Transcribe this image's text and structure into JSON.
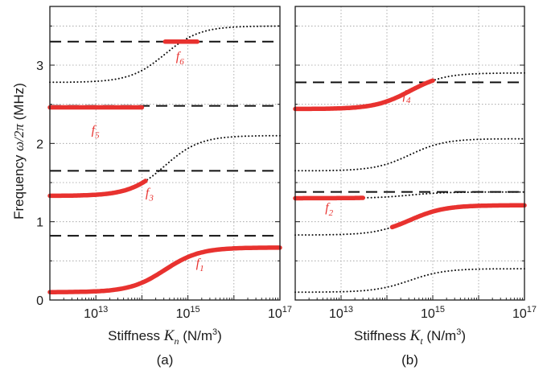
{
  "ylabel": {
    "prefix": "Frequency ",
    "symbol": "ω/2π",
    "unit": " (MHz)"
  },
  "colors": {
    "highlight": "#e8322f",
    "axis": "#1a1a1a",
    "grid": "#9a9a9a"
  },
  "chart_data": [
    {
      "type": "line",
      "panel_label": "(a)",
      "xlabel": {
        "prefix": "Stiffness ",
        "symbol": "K",
        "sub": "n",
        "unit": " (N/m",
        "sup": "3",
        "close": ")"
      },
      "x_scale": "log",
      "xlim": [
        1000000000000.0,
        1e+17
      ],
      "ylim": [
        0,
        3.75
      ],
      "grid": true,
      "yticks": [
        0,
        1,
        2,
        3
      ],
      "xticks": [
        {
          "value": 10000000000000.0,
          "base": "10",
          "exp": "13"
        },
        {
          "value": 1000000000000000.0,
          "base": "10",
          "exp": "15"
        },
        {
          "value": 1e+17,
          "base": "10",
          "exp": "17"
        }
      ],
      "uncoupled_dashed": [
        0.82,
        1.65,
        2.48,
        3.3
      ],
      "coupled_dotted": [
        {
          "low": 0.1,
          "high": 0.67
        },
        {
          "low": 1.33,
          "high": 2.1
        },
        {
          "low": 2.78,
          "high": 3.5
        }
      ],
      "highlighted": [
        {
          "label": "f",
          "sub": "1",
          "curve": {
            "low": 0.1,
            "high": 0.67
          },
          "x_range": [
            1000000000000.0,
            1e+17
          ],
          "label_at": [
            1500000000000000.0,
            0.42
          ]
        },
        {
          "label": "f",
          "sub": "3",
          "curve": {
            "low": 1.33,
            "high": 2.1
          },
          "x_range": [
            1000000000000.0,
            120000000000000.0
          ],
          "label_at": [
            120000000000000.0,
            1.32
          ]
        },
        {
          "label": "f",
          "sub": "5",
          "y": 2.46,
          "x_range": [
            1000000000000.0,
            100000000000000.0
          ],
          "label_at": [
            8000000000000.0,
            2.12
          ]
        },
        {
          "label": "f",
          "sub": "6",
          "y": 3.3,
          "x_range": [
            320000000000000.0,
            1600000000000000.0
          ],
          "label_at": [
            550000000000000.0,
            3.06
          ]
        }
      ]
    },
    {
      "type": "line",
      "panel_label": "(b)",
      "xlabel": {
        "prefix": "Stiffness ",
        "symbol": "K",
        "sub": "t",
        "unit": " (N/m",
        "sup": "3",
        "close": ")"
      },
      "x_scale": "log",
      "xlim": [
        1000000000000.0,
        1e+17
      ],
      "ylim": [
        0,
        3.75
      ],
      "grid": true,
      "yticks": [
        0,
        1,
        2,
        3
      ],
      "xticks": [
        {
          "value": 10000000000000.0,
          "base": "10",
          "exp": "13"
        },
        {
          "value": 1000000000000000.0,
          "base": "10",
          "exp": "15"
        },
        {
          "value": 1e+17,
          "base": "10",
          "exp": "17"
        }
      ],
      "uncoupled_dashed": [
        1.38,
        2.78
      ],
      "coupled_dotted": [
        {
          "low": 0.1,
          "high": 0.4
        },
        {
          "low": 0.83,
          "high": 1.21
        },
        {
          "low": 1.3,
          "high": 1.38
        },
        {
          "low": 1.65,
          "high": 2.06
        },
        {
          "low": 2.44,
          "high": 2.9
        }
      ],
      "highlighted": [
        {
          "label": "f",
          "sub": "2",
          "curve": {
            "low": 1.3,
            "high": 1.38
          },
          "x_range": [
            1000000000000.0,
            30000000000000.0
          ],
          "label_at": [
            4500000000000.0,
            1.13
          ]
        },
        {
          "label": "",
          "sub": "",
          "curve": {
            "low": 0.83,
            "high": 1.21
          },
          "x_range": [
            130000000000000.0,
            1e+17
          ],
          "label_at": [
            100000000000000.0,
            1.2
          ]
        },
        {
          "label": "f",
          "sub": "4",
          "curve": {
            "low": 2.44,
            "high": 2.9
          },
          "x_range": [
            1000000000000.0,
            1000000000000000.0
          ],
          "label_at": [
            220000000000000.0,
            2.57
          ]
        }
      ]
    }
  ]
}
